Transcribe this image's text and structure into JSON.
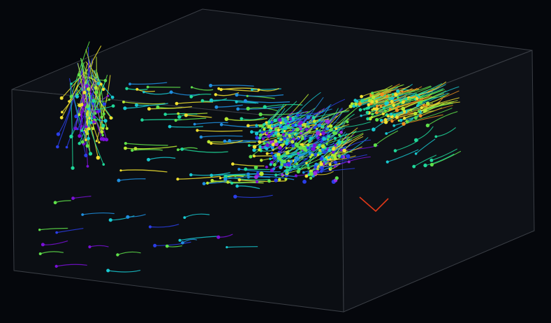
{
  "viewer": {
    "background_color": "#05070c",
    "box_face_color": "#0c0f14",
    "box_edge_color": "#3a3e45",
    "colormap": [
      "#7a10d8",
      "#2a3ee8",
      "#1f8fe0",
      "#18c8d0",
      "#1fd89a",
      "#5fe04a",
      "#b8e832",
      "#f0e030",
      "#f09020",
      "#e03818"
    ]
  },
  "clusters": [
    {
      "name": "left-cluster"
    },
    {
      "name": "center-cluster"
    },
    {
      "name": "right-cluster"
    }
  ]
}
